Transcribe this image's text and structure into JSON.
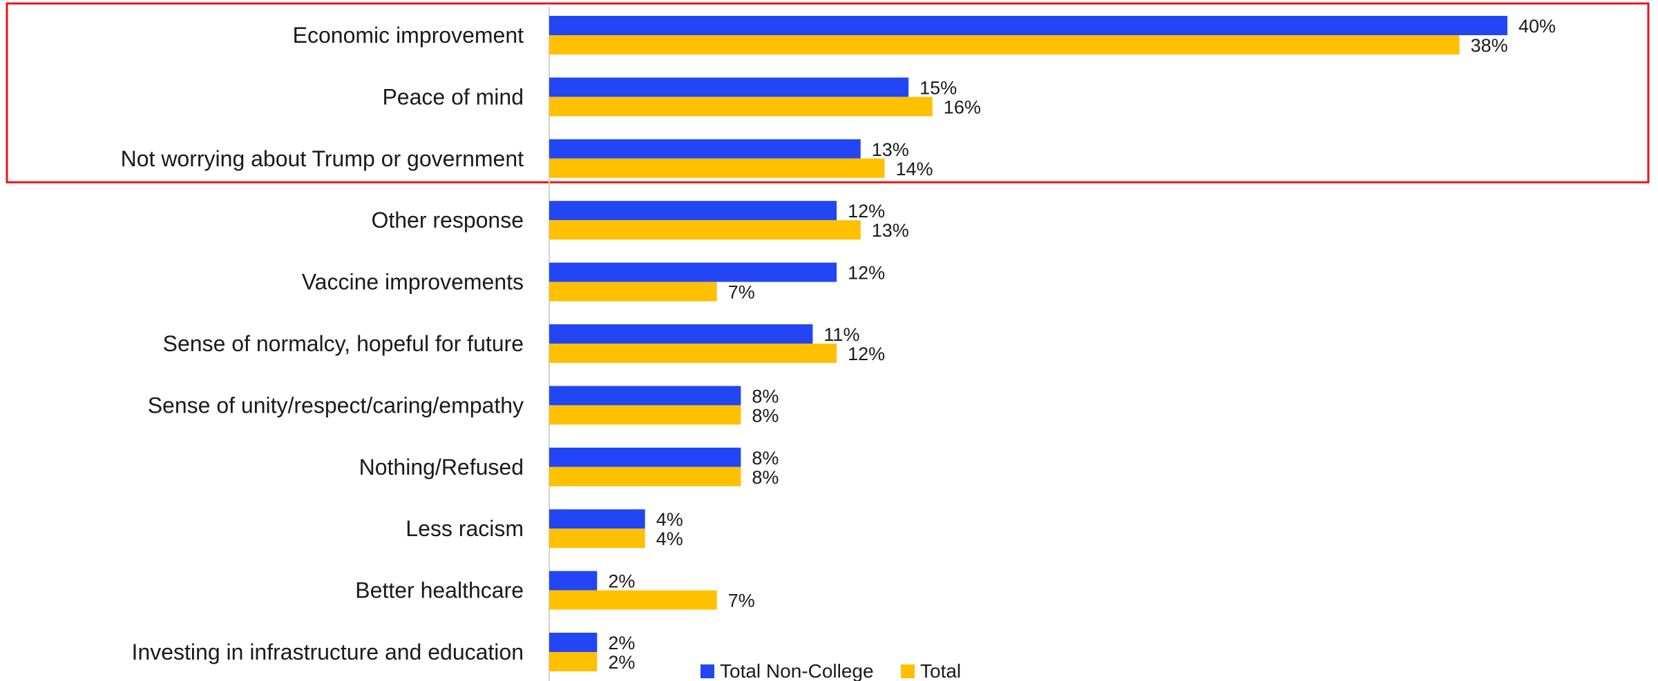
{
  "chart_data": {
    "type": "bar",
    "orientation": "horizontal",
    "categories": [
      "Economic improvement",
      "Peace of mind",
      "Not worrying about Trump or government",
      "Other response",
      "Vaccine improvements",
      "Sense of normalcy, hopeful for future",
      "Sense of unity/respect/caring/empathy",
      "Nothing/Refused",
      "Less racism",
      "Better healthcare",
      "Investing in infrastructure and education"
    ],
    "series": [
      {
        "name": "Total Non-College",
        "color": "#2346f5",
        "values": [
          40,
          15,
          13,
          12,
          12,
          11,
          8,
          8,
          4,
          2,
          2
        ],
        "labels": [
          "40%",
          "15%",
          "13%",
          "12%",
          "12%",
          "11%",
          "8%",
          "8%",
          "4%",
          "2%",
          "2%"
        ]
      },
      {
        "name": "Total",
        "color": "#ffc000",
        "values": [
          38,
          16,
          14,
          13,
          7,
          12,
          8,
          8,
          4,
          7,
          2
        ],
        "labels": [
          "38%",
          "16%",
          "14%",
          "13%",
          "7%",
          "12%",
          "8%",
          "8%",
          "4%",
          "7%",
          "2%"
        ]
      }
    ],
    "xlim": [
      0,
      40
    ],
    "value_suffix": "%",
    "legend_position": "bottom",
    "grid": false,
    "highlight": {
      "categories": [
        0,
        1,
        2
      ],
      "color": "#e8141c"
    }
  }
}
